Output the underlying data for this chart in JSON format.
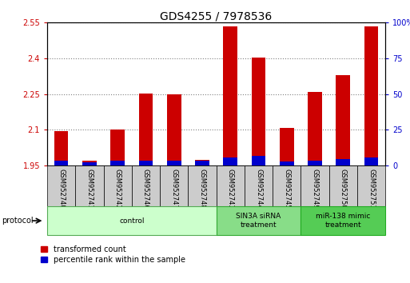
{
  "title": "GDS4255 / 7978536",
  "samples": [
    "GSM952740",
    "GSM952741",
    "GSM952742",
    "GSM952746",
    "GSM952747",
    "GSM952748",
    "GSM952743",
    "GSM952744",
    "GSM952745",
    "GSM952749",
    "GSM952750",
    "GSM952751"
  ],
  "transformed_count": [
    2.095,
    1.972,
    2.102,
    2.252,
    2.248,
    1.975,
    2.535,
    2.403,
    2.108,
    2.26,
    2.33,
    2.535
  ],
  "percentile_rank": [
    3.5,
    2.5,
    3.5,
    3.5,
    3.5,
    3.5,
    5.5,
    6.5,
    3.0,
    3.5,
    4.5,
    5.5
  ],
  "bar_base": 1.95,
  "red_color": "#cc0000",
  "blue_color": "#0000cc",
  "ylim_left": [
    1.95,
    2.55
  ],
  "ylim_right": [
    0,
    100
  ],
  "yticks_left": [
    1.95,
    2.1,
    2.25,
    2.4,
    2.55
  ],
  "ytick_labels_left": [
    "1.95",
    "2.1",
    "2.25",
    "2.4",
    "2.55"
  ],
  "yticks_right": [
    0,
    25,
    50,
    75,
    100
  ],
  "ytick_labels_right": [
    "0",
    "25",
    "50",
    "75",
    "100%"
  ],
  "groups": [
    {
      "label": "control",
      "start": 0,
      "end": 6,
      "color": "#ccffcc",
      "edge_color": "#55aa55"
    },
    {
      "label": "SIN3A siRNA\ntreatment",
      "start": 6,
      "end": 9,
      "color": "#88dd88",
      "edge_color": "#33aa33"
    },
    {
      "label": "miR-138 mimic\ntreatment",
      "start": 9,
      "end": 12,
      "color": "#55cc55",
      "edge_color": "#22aa22"
    }
  ],
  "protocol_label": "protocol",
  "legend_red": "transformed count",
  "legend_blue": "percentile rank within the sample",
  "bar_width": 0.5,
  "title_fontsize": 10,
  "tick_fontsize": 7,
  "label_fontsize": 7.5
}
